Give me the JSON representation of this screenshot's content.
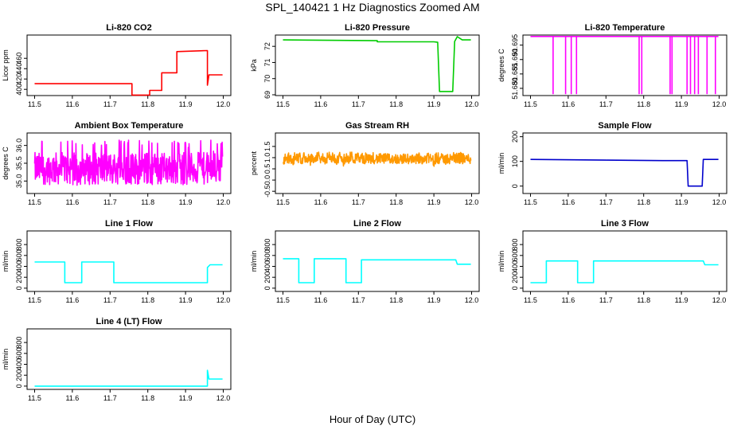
{
  "figure": {
    "title": "SPL_140421  1 Hz Diagnostics Zoomed AM",
    "xlabel": "Hour of Day (UTC)"
  },
  "chart_data": [
    {
      "type": "line",
      "title": "Li-820 CO2",
      "ylabel": "Licor ppm",
      "color": "#ff0000",
      "xlim": [
        11.48,
        12.02
      ],
      "ylim": [
        388,
        505
      ],
      "xticks": [
        "11.5",
        "11.6",
        "11.7",
        "11.8",
        "11.9",
        "12.0"
      ],
      "yticks": [
        "400",
        "420",
        "440",
        "460"
      ],
      "points": [
        [
          11.5,
          411
        ],
        [
          11.758,
          411
        ],
        [
          11.758,
          389
        ],
        [
          11.805,
          389
        ],
        [
          11.805,
          398
        ],
        [
          11.837,
          398
        ],
        [
          11.837,
          432
        ],
        [
          11.877,
          432
        ],
        [
          11.877,
          473
        ],
        [
          11.958,
          475
        ],
        [
          11.958,
          408
        ],
        [
          11.962,
          428
        ],
        [
          11.998,
          428
        ]
      ]
    },
    {
      "type": "line",
      "title": "Li-820 Pressure",
      "ylabel": "kPa",
      "color": "#00cc00",
      "xlim": [
        11.48,
        12.02
      ],
      "ylim": [
        68.95,
        72.7
      ],
      "xticks": [
        "11.5",
        "11.6",
        "11.7",
        "11.8",
        "11.9",
        "12.0"
      ],
      "yticks": [
        "69",
        "70",
        "71",
        "72"
      ],
      "points": [
        [
          11.5,
          72.4
        ],
        [
          11.75,
          72.35
        ],
        [
          11.75,
          72.28
        ],
        [
          11.9,
          72.28
        ],
        [
          11.91,
          72.25
        ],
        [
          11.915,
          69.2
        ],
        [
          11.95,
          69.2
        ],
        [
          11.955,
          72.3
        ],
        [
          11.962,
          72.6
        ],
        [
          11.975,
          72.4
        ],
        [
          11.998,
          72.4
        ]
      ]
    },
    {
      "type": "line",
      "title": "Li-820 Temperature",
      "ylabel": "degrees C",
      "color": "#ff00ff",
      "xlim": [
        11.48,
        12.02
      ],
      "ylim": [
        51.6775,
        51.6985
      ],
      "xticks": [
        "11.5",
        "11.6",
        "11.7",
        "11.8",
        "11.9",
        "12.0"
      ],
      "yticks": [
        "51.680",
        "51.685",
        "51.690",
        "51.695"
      ],
      "baseline": 51.698,
      "drop_to": 51.678,
      "drops": [
        11.56,
        11.593,
        11.608,
        11.622,
        11.788,
        11.795,
        11.87,
        11.875,
        11.915,
        11.924,
        11.935,
        11.945,
        11.968,
        11.99
      ]
    },
    {
      "type": "line",
      "title": "Ambient Box Temperature",
      "ylabel": "degrees C",
      "color": "#ff00ff",
      "xlim": [
        11.48,
        12.02
      ],
      "ylim": [
        34.65,
        36.35
      ],
      "xticks": [
        "11.5",
        "11.6",
        "11.7",
        "11.8",
        "11.9",
        "12.0"
      ],
      "yticks": [
        "35.0",
        "35.5",
        "36.0"
      ],
      "noise": {
        "low": 34.85,
        "mid": 35.35,
        "high": 36.15
      }
    },
    {
      "type": "line",
      "title": "Gas Stream RH",
      "ylabel": "percent",
      "color": "#ff9900",
      "xlim": [
        11.48,
        12.02
      ],
      "ylim": [
        -0.6,
        2.1
      ],
      "xticks": [
        "11.5",
        "11.6",
        "11.7",
        "11.8",
        "11.9",
        "12.0"
      ],
      "yticks": [
        "-0.5",
        "0.0",
        "0.5",
        "1.0",
        "1.5"
      ],
      "noise": {
        "low": 0.6,
        "mid": 0.95,
        "high": 1.25
      }
    },
    {
      "type": "line",
      "title": "Sample Flow",
      "ylabel": "ml/min",
      "color": "#0000cc",
      "xlim": [
        11.48,
        12.02
      ],
      "ylim": [
        -30,
        215
      ],
      "xticks": [
        "11.5",
        "11.6",
        "11.7",
        "11.8",
        "11.9",
        "12.0"
      ],
      "yticks": [
        "0",
        "100",
        "200"
      ],
      "points": [
        [
          11.5,
          108
        ],
        [
          11.7,
          105
        ],
        [
          11.85,
          103
        ],
        [
          11.915,
          103
        ],
        [
          11.918,
          0
        ],
        [
          11.955,
          0
        ],
        [
          11.958,
          108
        ],
        [
          11.998,
          108
        ]
      ]
    },
    {
      "type": "line",
      "title": "Line 1 Flow",
      "ylabel": "ml/min",
      "color": "#00ffff",
      "xlim": [
        11.48,
        12.02
      ],
      "ylim": [
        -60,
        1050
      ],
      "xticks": [
        "11.5",
        "11.6",
        "11.7",
        "11.8",
        "11.9",
        "12.0"
      ],
      "yticks": [
        "0",
        "200",
        "400",
        "600",
        "800"
      ],
      "points": [
        [
          11.5,
          480
        ],
        [
          11.58,
          480
        ],
        [
          11.58,
          100
        ],
        [
          11.625,
          100
        ],
        [
          11.625,
          480
        ],
        [
          11.71,
          480
        ],
        [
          11.71,
          100
        ],
        [
          11.958,
          100
        ],
        [
          11.958,
          380
        ],
        [
          11.965,
          430
        ],
        [
          11.998,
          430
        ]
      ]
    },
    {
      "type": "line",
      "title": "Line 2 Flow",
      "ylabel": "ml/min",
      "color": "#00ffff",
      "xlim": [
        11.48,
        12.02
      ],
      "ylim": [
        -60,
        1050
      ],
      "xticks": [
        "11.5",
        "11.6",
        "11.7",
        "11.8",
        "11.9",
        "12.0"
      ],
      "yticks": [
        "0",
        "200",
        "400",
        "600",
        "800"
      ],
      "points": [
        [
          11.5,
          540
        ],
        [
          11.542,
          540
        ],
        [
          11.542,
          100
        ],
        [
          11.583,
          100
        ],
        [
          11.583,
          540
        ],
        [
          11.667,
          540
        ],
        [
          11.667,
          100
        ],
        [
          11.708,
          100
        ],
        [
          11.708,
          520
        ],
        [
          11.958,
          520
        ],
        [
          11.962,
          440
        ],
        [
          11.998,
          440
        ]
      ]
    },
    {
      "type": "line",
      "title": "Line 3 Flow",
      "ylabel": "ml/min",
      "color": "#00ffff",
      "xlim": [
        11.48,
        12.02
      ],
      "ylim": [
        -60,
        1050
      ],
      "xticks": [
        "11.5",
        "11.6",
        "11.7",
        "11.8",
        "11.9",
        "12.0"
      ],
      "yticks": [
        "0",
        "200",
        "400",
        "600",
        "800"
      ],
      "points": [
        [
          11.5,
          100
        ],
        [
          11.542,
          100
        ],
        [
          11.542,
          500
        ],
        [
          11.625,
          500
        ],
        [
          11.625,
          100
        ],
        [
          11.667,
          100
        ],
        [
          11.667,
          500
        ],
        [
          11.958,
          500
        ],
        [
          11.962,
          430
        ],
        [
          11.998,
          430
        ]
      ]
    },
    {
      "type": "line",
      "title": "Line 4 (LT) Flow",
      "ylabel": "ml/min",
      "color": "#00ffff",
      "xlim": [
        11.48,
        12.02
      ],
      "ylim": [
        -60,
        1050
      ],
      "xticks": [
        "11.5",
        "11.6",
        "11.7",
        "11.8",
        "11.9",
        "12.0"
      ],
      "yticks": [
        "0",
        "200",
        "400",
        "600",
        "800"
      ],
      "points": [
        [
          11.5,
          0
        ],
        [
          11.958,
          0
        ],
        [
          11.958,
          290
        ],
        [
          11.962,
          130
        ],
        [
          11.998,
          130
        ]
      ]
    }
  ]
}
